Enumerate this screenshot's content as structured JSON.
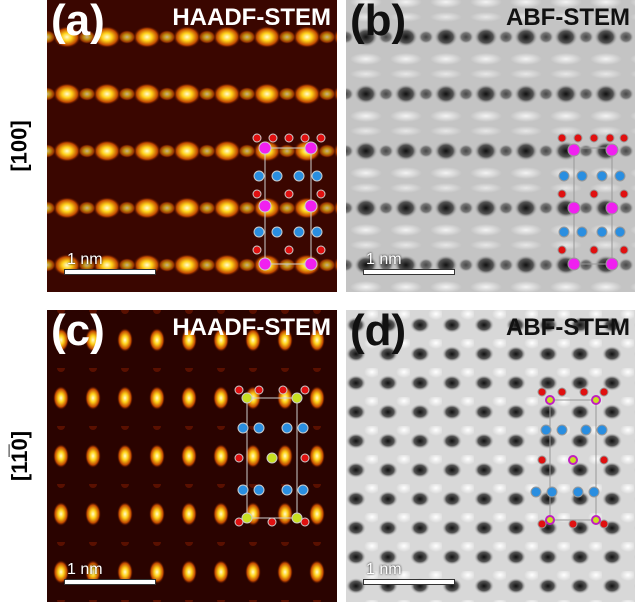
{
  "zone_axes": [
    "[100]",
    "[11̅0]"
  ],
  "panels": [
    {
      "label": "(a)",
      "mode": "HAADF-STEM",
      "scale_bar": "1 nm"
    },
    {
      "label": "(b)",
      "mode": "ABF-STEM",
      "scale_bar": "1 nm"
    },
    {
      "label": "(c)",
      "mode": "HAADF-STEM",
      "scale_bar": "1 nm"
    },
    {
      "label": "(d)",
      "mode": "ABF-STEM",
      "scale_bar": "1 nm"
    }
  ]
}
